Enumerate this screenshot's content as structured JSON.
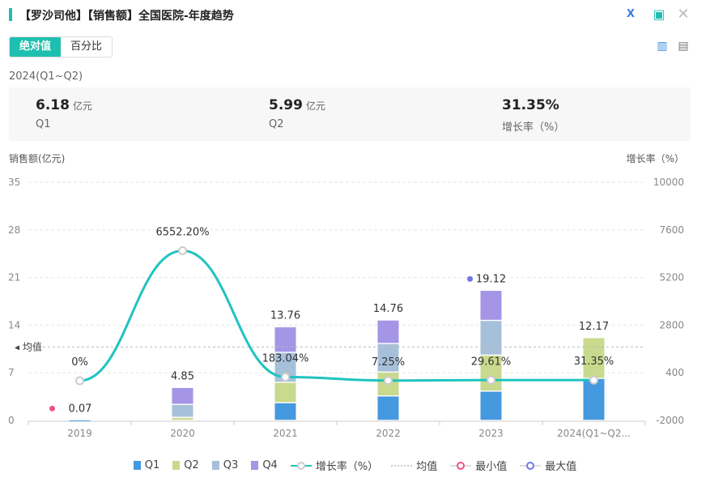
{
  "header": {
    "title": "【罗沙司他】【销售额】全国医院-年度趋势",
    "icons": [
      "excel-export-icon",
      "image-export-icon",
      "close-icon"
    ]
  },
  "toggle": {
    "options": [
      "绝对值",
      "百分比"
    ],
    "selected": "绝对值"
  },
  "view_icons": [
    "bar-chart-icon",
    "document-icon"
  ],
  "period": "2024(Q1~Q2)",
  "kpis": [
    {
      "value": "6.18",
      "unit": "亿元",
      "label": "Q1"
    },
    {
      "value": "5.99",
      "unit": "亿元",
      "label": "Q2"
    },
    {
      "value": "31.35%",
      "unit": "",
      "label": "增长率（%）"
    }
  ],
  "colors": {
    "Q1": "#4599de",
    "Q2": "#c9d98d",
    "Q3": "#a7c0da",
    "Q4": "#a495e6",
    "growth": "#1fc3c0",
    "min": "#f0508a",
    "max": "#6f78e8",
    "accent": "#1fbfb0"
  },
  "chart_data": {
    "type": "bar+line",
    "ylabel": "销售额(亿元)",
    "y2label": "增长率（%）",
    "ylim": [
      0,
      35
    ],
    "yticks": [
      0,
      7,
      14,
      21,
      28,
      35
    ],
    "y2lim": [
      -2000,
      10000
    ],
    "y2ticks": [
      -2000,
      400,
      2800,
      5200,
      7600,
      10000
    ],
    "categories": [
      "2019",
      "2020",
      "2021",
      "2022",
      "2023",
      "2024(Q1~Q2..."
    ],
    "series": [
      {
        "name": "Q1",
        "values": [
          0.07,
          0,
          2.6,
          3.6,
          4.3,
          6.18
        ]
      },
      {
        "name": "Q2",
        "values": [
          0,
          0.45,
          3.0,
          3.5,
          5.3,
          5.99
        ]
      },
      {
        "name": "Q3",
        "values": [
          0,
          1.9,
          4.4,
          4.2,
          5.1,
          0
        ]
      },
      {
        "name": "Q4",
        "values": [
          0,
          2.5,
          3.76,
          3.46,
          4.42,
          0
        ]
      }
    ],
    "totals": [
      "0.07",
      "4.85",
      "13.76",
      "14.76",
      "19.12",
      "12.17"
    ],
    "growth": {
      "name": "增长率（%）",
      "values": [
        0,
        6552.2,
        183.04,
        7.25,
        29.61,
        31.35
      ],
      "labels": [
        "0%",
        "6552.20%",
        "183.04%",
        "7.25%",
        "29.61%",
        "31.35%"
      ]
    },
    "mean": {
      "name": "均值",
      "value": 10.79
    },
    "min": {
      "name": "最小值",
      "category": "2019"
    },
    "max": {
      "name": "最大值",
      "category": "2023"
    },
    "grid": true,
    "legend": "bottom"
  }
}
